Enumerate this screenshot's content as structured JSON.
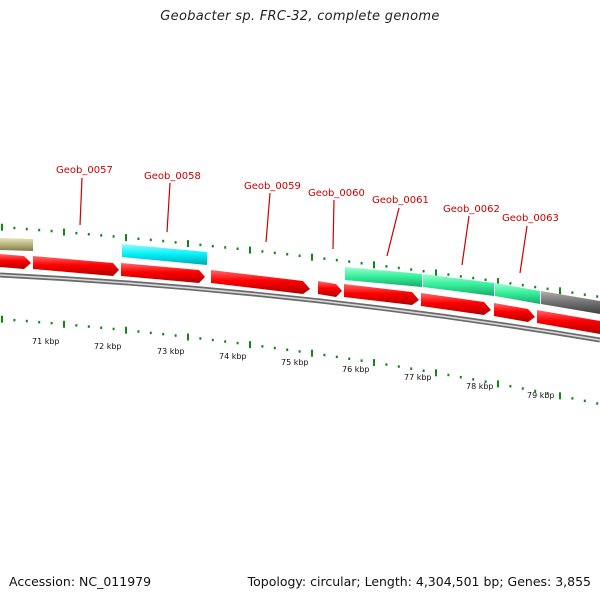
{
  "title": "Geobacter sp. FRC-32, complete genome",
  "footer": {
    "accession": "Accession: NC_011979",
    "summary": "Topology: circular; Length: 4,304,501 bp; Genes: 3,855"
  },
  "colors": {
    "forward_cds": "#ff0000",
    "reverse_cds_cyan": "#00f0f8",
    "reverse_cds_green": "#33ee99",
    "reverse_cds_grey": "#707070",
    "reverse_cds_olive": "#b8b47e",
    "label": "#cc0000",
    "scale_ticks": "#118811",
    "backbone": "#888888"
  },
  "ruler": {
    "labels": [
      "71 kbp",
      "72 kbp",
      "73 kbp",
      "74 kbp",
      "75 kbp",
      "76 kbp",
      "77 kbp",
      "78 kbp",
      "79 kbp"
    ]
  },
  "gene_labels": [
    "Geob_0057",
    "Geob_0058",
    "Geob_0059",
    "Geob_0060",
    "Geob_0061",
    "Geob_0062",
    "Geob_0063"
  ]
}
